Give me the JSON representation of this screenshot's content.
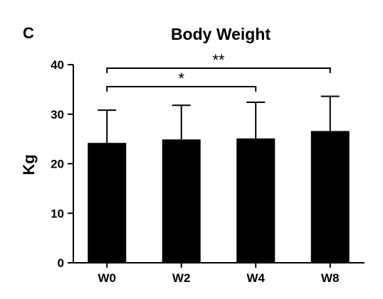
{
  "panel_label": "C",
  "chart_data": {
    "type": "bar",
    "title": "Body Weight",
    "xlabel": "",
    "ylabel": "Kg",
    "categories": [
      "W0",
      "W2",
      "W4",
      "W8"
    ],
    "values": [
      24.2,
      24.9,
      25.1,
      26.6
    ],
    "error_upper": [
      30.8,
      31.8,
      32.4,
      33.6
    ],
    "ylim": [
      0,
      40
    ],
    "yticks": [
      0,
      10,
      20,
      30,
      40
    ],
    "ytick_labels": [
      "0",
      "10",
      "20",
      "30",
      "40"
    ],
    "grid": false,
    "legend": "none",
    "bar_color": "#000000",
    "annotations": [
      {
        "from": "W0",
        "to": "W4",
        "label": "*"
      },
      {
        "from": "W0",
        "to": "W8",
        "label": "**"
      }
    ]
  }
}
